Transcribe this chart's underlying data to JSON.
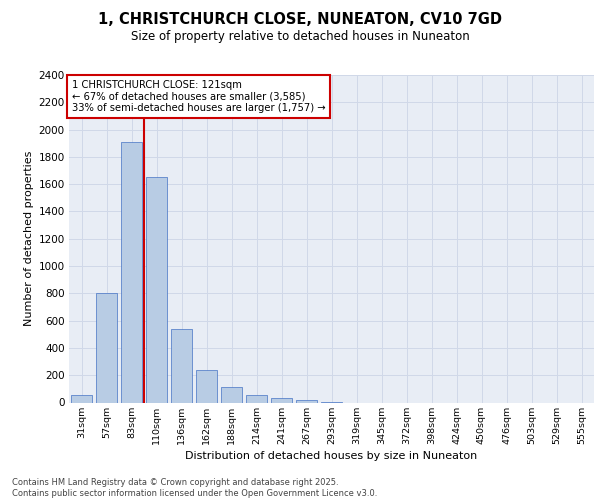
{
  "title_line1": "1, CHRISTCHURCH CLOSE, NUNEATON, CV10 7GD",
  "title_line2": "Size of property relative to detached houses in Nuneaton",
  "xlabel": "Distribution of detached houses by size in Nuneaton",
  "ylabel": "Number of detached properties",
  "footer_line1": "Contains HM Land Registry data © Crown copyright and database right 2025.",
  "footer_line2": "Contains public sector information licensed under the Open Government Licence v3.0.",
  "categories": [
    "31sqm",
    "57sqm",
    "83sqm",
    "110sqm",
    "136sqm",
    "162sqm",
    "188sqm",
    "214sqm",
    "241sqm",
    "267sqm",
    "293sqm",
    "319sqm",
    "345sqm",
    "372sqm",
    "398sqm",
    "424sqm",
    "450sqm",
    "476sqm",
    "503sqm",
    "529sqm",
    "555sqm"
  ],
  "values": [
    55,
    805,
    1910,
    1650,
    540,
    240,
    110,
    55,
    30,
    15,
    5,
    0,
    0,
    0,
    0,
    0,
    0,
    0,
    0,
    0,
    0
  ],
  "bar_color": "#b8cce4",
  "bar_edge_color": "#4472c4",
  "grid_color": "#d0d8e8",
  "background_color": "#e8edf5",
  "vline_x_index": 3,
  "vline_color": "#cc0000",
  "annotation_text": "1 CHRISTCHURCH CLOSE: 121sqm\n← 67% of detached houses are smaller (3,585)\n33% of semi-detached houses are larger (1,757) →",
  "annotation_box_color": "#ffffff",
  "annotation_box_edge": "#cc0000",
  "ylim": [
    0,
    2400
  ],
  "yticks": [
    0,
    200,
    400,
    600,
    800,
    1000,
    1200,
    1400,
    1600,
    1800,
    2000,
    2200,
    2400
  ]
}
